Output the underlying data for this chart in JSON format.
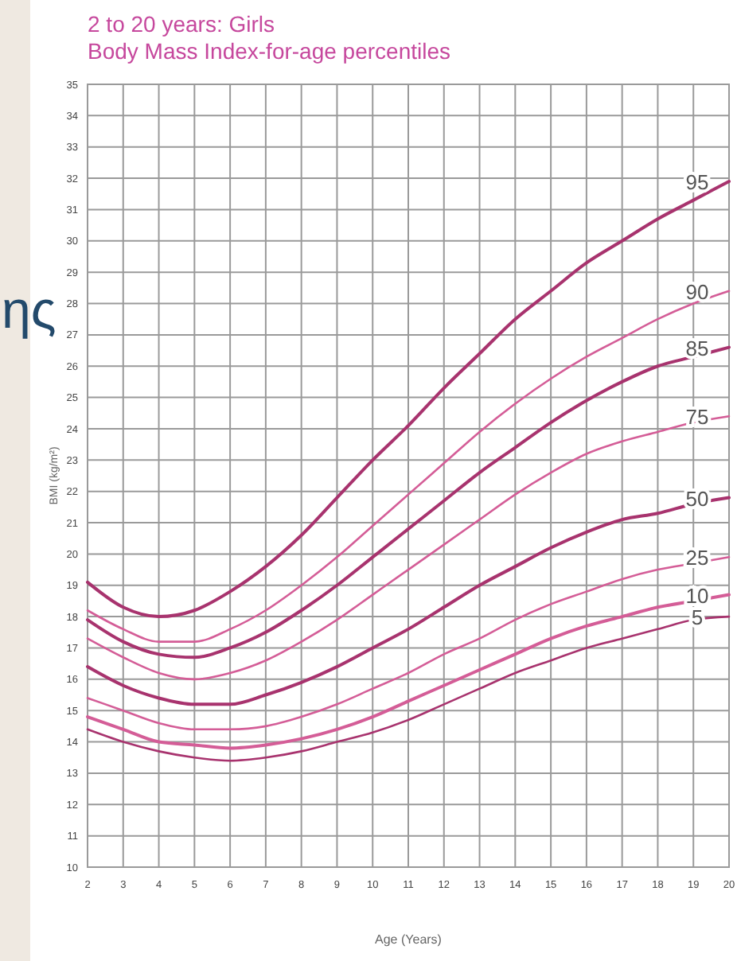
{
  "chart_data": {
    "type": "line",
    "title": "2 to 20 years: Girls",
    "subtitle": "Body Mass Index-for-age percentiles",
    "xlabel": "Age (Years)",
    "ylabel": "BMI (kg/m²)",
    "annotations": [
      "ης"
    ],
    "x": [
      2,
      3,
      4,
      5,
      6,
      7,
      8,
      9,
      10,
      11,
      12,
      13,
      14,
      15,
      16,
      17,
      18,
      19,
      20
    ],
    "xlim": [
      2,
      20
    ],
    "xticks": [
      2,
      3,
      4,
      5,
      6,
      7,
      8,
      9,
      10,
      11,
      12,
      13,
      14,
      15,
      16,
      17,
      18,
      19,
      20
    ],
    "ylim": [
      10,
      35
    ],
    "yticks": [
      10,
      11,
      12,
      13,
      14,
      15,
      16,
      17,
      18,
      19,
      20,
      21,
      22,
      23,
      24,
      25,
      26,
      27,
      28,
      29,
      30,
      31,
      32,
      33,
      34,
      35
    ],
    "grid": true,
    "legend": false,
    "marker": "none",
    "line_style": "solid",
    "series": [
      {
        "name": "95",
        "color": "#a8336e",
        "values": [
          19.1,
          18.3,
          18.0,
          18.2,
          18.8,
          19.6,
          20.6,
          21.8,
          23.0,
          24.1,
          25.3,
          26.4,
          27.5,
          28.4,
          29.3,
          30.0,
          30.7,
          31.3,
          31.9
        ]
      },
      {
        "name": "90",
        "color": "#d45d97",
        "values": [
          18.2,
          17.6,
          17.2,
          17.2,
          17.6,
          18.2,
          19.0,
          19.9,
          20.9,
          21.9,
          22.9,
          23.9,
          24.8,
          25.6,
          26.3,
          26.9,
          27.5,
          28.0,
          28.4
        ]
      },
      {
        "name": "85",
        "color": "#a8336e",
        "values": [
          17.9,
          17.2,
          16.8,
          16.7,
          17.0,
          17.5,
          18.2,
          19.0,
          19.9,
          20.8,
          21.7,
          22.6,
          23.4,
          24.2,
          24.9,
          25.5,
          26.0,
          26.3,
          26.6
        ]
      },
      {
        "name": "75",
        "color": "#d45d97",
        "values": [
          17.3,
          16.7,
          16.2,
          16.0,
          16.2,
          16.6,
          17.2,
          17.9,
          18.7,
          19.5,
          20.3,
          21.1,
          21.9,
          22.6,
          23.2,
          23.6,
          23.9,
          24.2,
          24.4
        ]
      },
      {
        "name": "50",
        "color": "#a8336e",
        "values": [
          16.4,
          15.8,
          15.4,
          15.2,
          15.2,
          15.5,
          15.9,
          16.4,
          17.0,
          17.6,
          18.3,
          19.0,
          19.6,
          20.2,
          20.7,
          21.1,
          21.3,
          21.6,
          21.8
        ]
      },
      {
        "name": "25",
        "color": "#d45d97",
        "values": [
          15.4,
          15.0,
          14.6,
          14.4,
          14.4,
          14.5,
          14.8,
          15.2,
          15.7,
          16.2,
          16.8,
          17.3,
          17.9,
          18.4,
          18.8,
          19.2,
          19.5,
          19.7,
          19.9
        ]
      },
      {
        "name": "10",
        "color": "#d45d97",
        "values": [
          14.8,
          14.4,
          14.0,
          13.9,
          13.8,
          13.9,
          14.1,
          14.4,
          14.8,
          15.3,
          15.8,
          16.3,
          16.8,
          17.3,
          17.7,
          18.0,
          18.3,
          18.5,
          18.7
        ]
      },
      {
        "name": "5",
        "color": "#a8336e",
        "values": [
          14.4,
          14.0,
          13.7,
          13.5,
          13.4,
          13.5,
          13.7,
          14.0,
          14.3,
          14.7,
          15.2,
          15.7,
          16.2,
          16.6,
          17.0,
          17.3,
          17.6,
          17.9,
          18.0
        ]
      }
    ]
  }
}
